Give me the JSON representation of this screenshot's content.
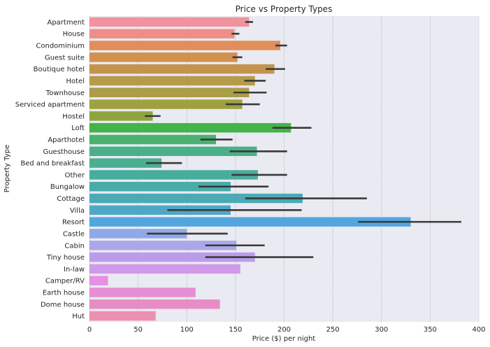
{
  "chart_data": {
    "type": "bar",
    "orientation": "horizontal",
    "title": "Price vs Property Types",
    "xlabel": "Price ($) per night",
    "ylabel": "Property Type",
    "xlim": [
      0,
      400
    ],
    "xticks": [
      "0",
      "50",
      "100",
      "150",
      "200",
      "250",
      "300",
      "350",
      "400"
    ],
    "grid": true,
    "categories": [
      "Apartment",
      "House",
      "Condominium",
      "Guest suite",
      "Boutique hotel",
      "Hotel",
      "Townhouse",
      "Serviced apartment",
      "Hostel",
      "Loft",
      "Aparthotel",
      "Guesthouse",
      "Bed and breakfast",
      "Other",
      "Bungalow",
      "Cottage",
      "Villa",
      "Resort",
      "Castle",
      "Cabin",
      "Tiny house",
      "In-law",
      "Camper/RV",
      "Earth house",
      "Dome house",
      "Hut"
    ],
    "values": [
      164,
      149,
      196,
      152,
      190,
      170,
      164,
      157,
      65,
      207,
      130,
      172,
      74,
      173,
      145,
      219,
      145,
      330,
      100,
      151,
      170,
      155,
      19,
      109,
      134,
      68
    ],
    "error_low": [
      160,
      146,
      191,
      147,
      181,
      159,
      148,
      140,
      57,
      188,
      114,
      144,
      58,
      146,
      112,
      160,
      80,
      276,
      59,
      119,
      119,
      null,
      null,
      null,
      null,
      null
    ],
    "error_high": [
      168,
      154,
      203,
      157,
      201,
      181,
      182,
      175,
      73,
      228,
      147,
      203,
      95,
      203,
      184,
      285,
      218,
      382,
      142,
      180,
      230,
      null,
      null,
      null,
      null,
      null
    ],
    "colors": [
      "#f1929e",
      "#ef8e86",
      "#e18e5a",
      "#d2914f",
      "#c4944e",
      "#b69b4b",
      "#ab9c46",
      "#9ea13f",
      "#8ea53d",
      "#42b449",
      "#4bb171",
      "#49b087",
      "#4aae93",
      "#49ad9d",
      "#49aca8",
      "#4aaab5",
      "#4ea7c5",
      "#52a6de",
      "#8fa9e8",
      "#aca6ea",
      "#bb9ceb",
      "#d199ea",
      "#e68fe4",
      "#e68ed3",
      "#e68ec4",
      "#ec8fb1"
    ],
    "error_color": "#3a3a3a",
    "background": "#eaeaf2"
  }
}
